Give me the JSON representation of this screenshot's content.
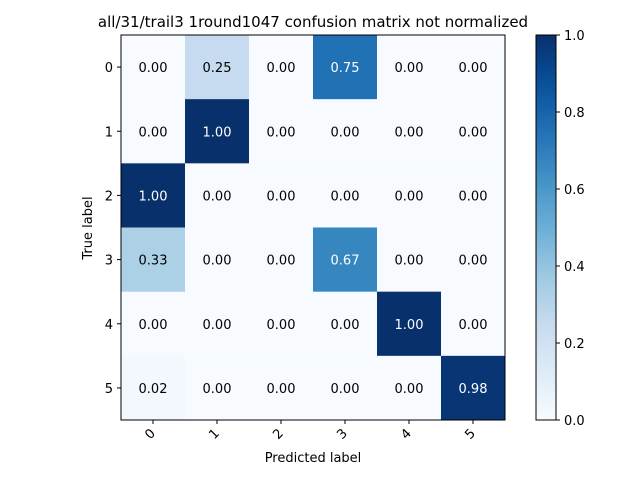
{
  "chart_data": {
    "type": "heatmap",
    "title": "all/31/trail3 1round1047 confusion matrix not normalized",
    "xlabel": "Predicted label",
    "ylabel": "True label",
    "x_categories": [
      "0",
      "1",
      "2",
      "3",
      "4",
      "5"
    ],
    "y_categories": [
      "0",
      "1",
      "2",
      "3",
      "4",
      "5"
    ],
    "values": [
      [
        0.0,
        0.25,
        0.0,
        0.75,
        0.0,
        0.0
      ],
      [
        0.0,
        1.0,
        0.0,
        0.0,
        0.0,
        0.0
      ],
      [
        1.0,
        0.0,
        0.0,
        0.0,
        0.0,
        0.0
      ],
      [
        0.33,
        0.0,
        0.0,
        0.67,
        0.0,
        0.0
      ],
      [
        0.0,
        0.0,
        0.0,
        0.0,
        1.0,
        0.0
      ],
      [
        0.02,
        0.0,
        0.0,
        0.0,
        0.0,
        0.98
      ]
    ],
    "value_format": "0.00",
    "colormap": "Blues",
    "colorbar": {
      "range": [
        0.0,
        1.0
      ],
      "ticks": [
        "0.0",
        "0.2",
        "0.4",
        "0.6",
        "0.8",
        "1.0"
      ]
    },
    "x_tick_rotation": "45 degrees"
  }
}
